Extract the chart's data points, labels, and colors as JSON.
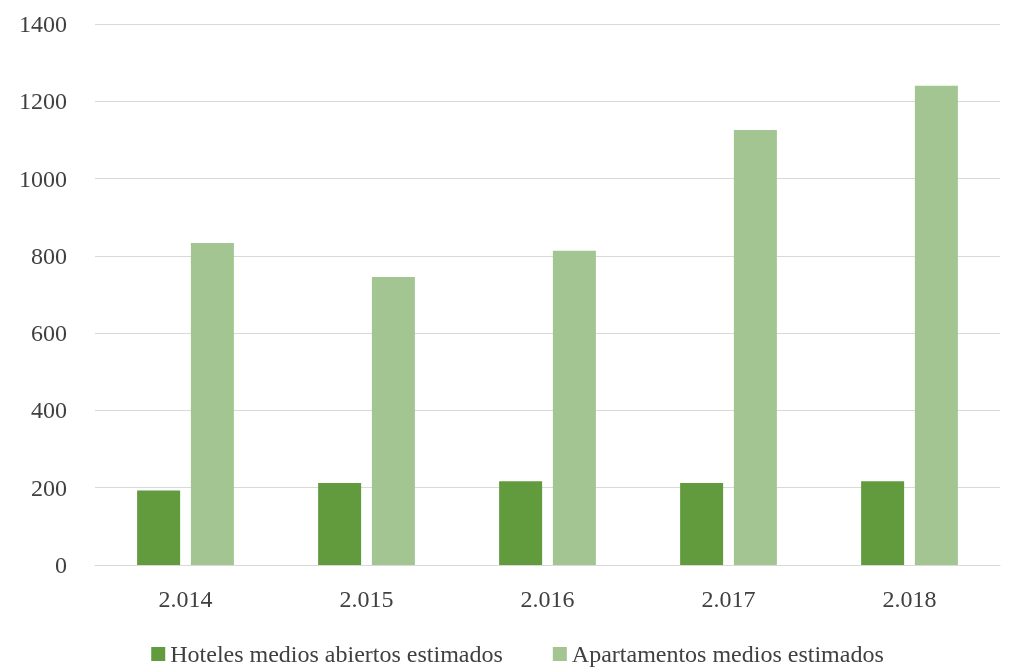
{
  "chart_data": {
    "type": "bar",
    "categories": [
      "2.014",
      "2.015",
      "2.016",
      "2.017",
      "2.018"
    ],
    "series": [
      {
        "name": "Hoteles medios abiertos estimados",
        "color": "#629a3e",
        "values": [
          193,
          212,
          217,
          212,
          217
        ]
      },
      {
        "name": "Apartamentos medios estimados",
        "color": "#a2c591",
        "values": [
          833,
          745,
          813,
          1126,
          1240
        ]
      }
    ],
    "ylim": [
      0,
      1400
    ],
    "yticks": [
      0,
      200,
      400,
      600,
      800,
      1000,
      1200,
      1400
    ],
    "grid": "y",
    "legend": "bottom"
  }
}
